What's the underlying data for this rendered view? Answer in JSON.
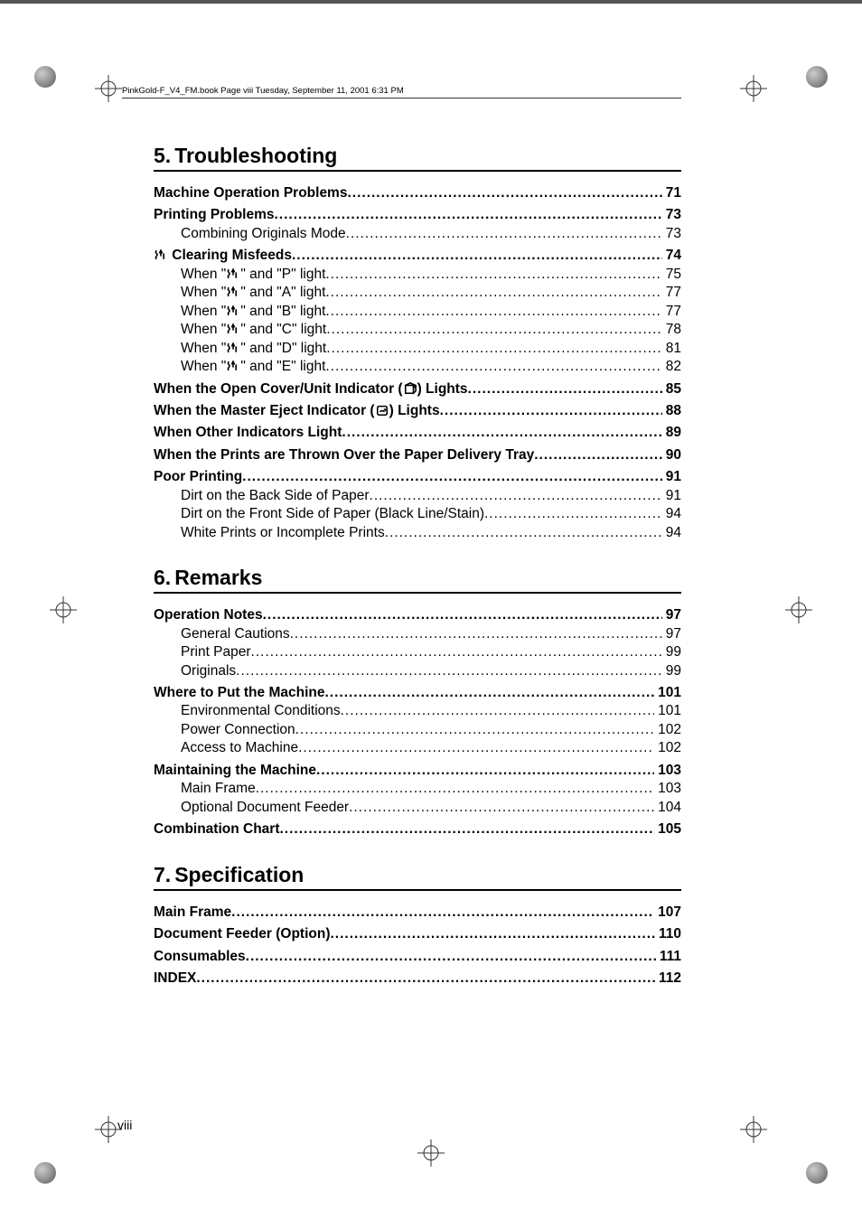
{
  "running_header": "PinkGold-F_V4_FM.book  Page viii  Tuesday, September 11, 2001  6:31 PM",
  "page_number": "viii",
  "chapters": [
    {
      "number": "5.",
      "title": "Troubleshooting",
      "blocks": [
        [
          {
            "level": 1,
            "title": "Machine Operation Problems",
            "page": "71"
          }
        ],
        [
          {
            "level": 1,
            "title": "Printing Problems",
            "page": "73"
          },
          {
            "level": 2,
            "title": "Combining Originals Mode",
            "page": "73"
          }
        ],
        [
          {
            "level": 1,
            "icon": "misfeed",
            "title": " Clearing Misfeeds",
            "page": "74"
          },
          {
            "level": 2,
            "title_parts": [
              "When \"",
              {
                "icon": "misfeed"
              },
              "\" and \"P\" light"
            ],
            "page": "75"
          },
          {
            "level": 2,
            "title_parts": [
              "When \"",
              {
                "icon": "misfeed"
              },
              "\" and \"A\" light"
            ],
            "page": "77"
          },
          {
            "level": 2,
            "title_parts": [
              "When \"",
              {
                "icon": "misfeed"
              },
              "\" and \"B\" light"
            ],
            "page": "77"
          },
          {
            "level": 2,
            "title_parts": [
              "When \"",
              {
                "icon": "misfeed"
              },
              "\" and \"C\" light"
            ],
            "page": "78"
          },
          {
            "level": 2,
            "title_parts": [
              "When \"",
              {
                "icon": "misfeed"
              },
              "\" and \"D\" light"
            ],
            "page": "81"
          },
          {
            "level": 2,
            "title_parts": [
              "When \"",
              {
                "icon": "misfeed"
              },
              "\" and \"E\" light"
            ],
            "page": "82"
          }
        ],
        [
          {
            "level": 1,
            "title_parts": [
              "When the Open Cover/Unit Indicator (",
              {
                "icon": "cover"
              },
              ") Lights"
            ],
            "page": "85"
          }
        ],
        [
          {
            "level": 1,
            "title_parts": [
              "When the Master Eject Indicator (",
              {
                "icon": "eject"
              },
              ") Lights"
            ],
            "page": "88"
          }
        ],
        [
          {
            "level": 1,
            "title": "When Other Indicators Light",
            "page": "89"
          }
        ],
        [
          {
            "level": 1,
            "title": "When the Prints are Thrown Over the Paper Delivery Tray",
            "page": "90"
          }
        ],
        [
          {
            "level": 1,
            "title": "Poor Printing",
            "page": "91"
          },
          {
            "level": 2,
            "title": "Dirt on the Back Side of Paper",
            "page": "91"
          },
          {
            "level": 2,
            "title": "Dirt on the Front Side of Paper (Black Line/Stain)",
            "page": "94"
          },
          {
            "level": 2,
            "title": "White Prints or Incomplete Prints",
            "page": "94"
          }
        ]
      ]
    },
    {
      "number": "6.",
      "title": "Remarks",
      "blocks": [
        [
          {
            "level": 1,
            "title": "Operation Notes",
            "page": "97"
          },
          {
            "level": 2,
            "title": "General Cautions",
            "page": "97"
          },
          {
            "level": 2,
            "title": "Print Paper",
            "page": "99"
          },
          {
            "level": 2,
            "title": "Originals",
            "page": "99"
          }
        ],
        [
          {
            "level": 1,
            "title": "Where to Put the Machine",
            "page": "101"
          },
          {
            "level": 2,
            "title": "Environmental Conditions",
            "page": "101"
          },
          {
            "level": 2,
            "title": "Power Connection",
            "page": "102"
          },
          {
            "level": 2,
            "title": "Access to Machine",
            "page": "102"
          }
        ],
        [
          {
            "level": 1,
            "title": "Maintaining the Machine",
            "page": "103"
          },
          {
            "level": 2,
            "title": "Main Frame",
            "page": "103"
          },
          {
            "level": 2,
            "title": "Optional Document Feeder",
            "page": "104"
          }
        ],
        [
          {
            "level": 1,
            "title": "Combination Chart",
            "page": "105"
          }
        ]
      ]
    },
    {
      "number": "7.",
      "title": "Specification",
      "blocks": [
        [
          {
            "level": 1,
            "title": "Main Frame",
            "page": "107"
          }
        ],
        [
          {
            "level": 1,
            "title": "Document Feeder (Option)",
            "page": "110"
          }
        ],
        [
          {
            "level": 1,
            "title": "Consumables",
            "page": "111"
          }
        ],
        [
          {
            "level": 1,
            "title": "INDEX",
            "page": "112"
          }
        ]
      ]
    }
  ],
  "icons": {
    "misfeed": "misfeed-icon",
    "cover": "open-cover-icon",
    "eject": "master-eject-icon"
  }
}
